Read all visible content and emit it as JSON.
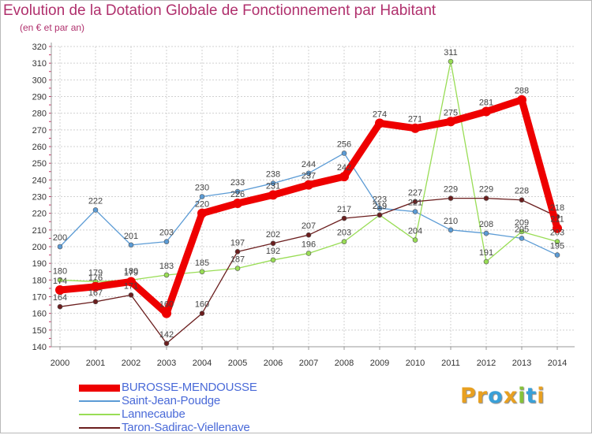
{
  "title": "Evolution de la Dotation Globale de Fonctionnement par Habitant",
  "subtitle": "(en € et par an)",
  "brand": {
    "letters": [
      "P",
      "r",
      "o",
      "x",
      "i",
      "t",
      "i"
    ],
    "colors": [
      "#e8a020",
      "#e8a020",
      "#39a0d8",
      "#e8a020",
      "#86c23a",
      "#39a0d8",
      "#e8a020"
    ]
  },
  "chart_data": {
    "type": "line",
    "title": "Evolution de la Dotation Globale de Fonctionnement par Habitant",
    "subtitle": "(en € et par an)",
    "xlabel": "",
    "ylabel": "",
    "x": [
      "2000",
      "2001",
      "2002",
      "2003",
      "2004",
      "2005",
      "2006",
      "2007",
      "2008",
      "2009",
      "2010",
      "2011",
      "2012",
      "2013",
      "2014"
    ],
    "ylim": [
      140,
      320
    ],
    "yticks": [
      "140",
      "150",
      "160",
      "170",
      "180",
      "190",
      "200",
      "210",
      "220",
      "230",
      "240",
      "250",
      "260",
      "270",
      "280",
      "290",
      "300",
      "310",
      "320"
    ],
    "grid": true,
    "legend_position": "bottom-left",
    "series": [
      {
        "name": "BUROSSE-MENDOUSSE",
        "color": "#ee0000",
        "values": [
          174,
          176,
          179,
          160,
          220,
          226,
          231,
          237,
          242,
          274,
          271,
          275,
          281,
          288,
          211
        ],
        "labels": [
          "174",
          "176",
          "179",
          "160",
          "220",
          "226",
          "231",
          "237",
          "242",
          "274",
          "271",
          "275",
          "281",
          "288",
          "211"
        ]
      },
      {
        "name": "Saint-Jean-Poudge",
        "color": "#5b9bd5",
        "values": [
          200,
          222,
          201,
          203,
          230,
          233,
          238,
          244,
          256,
          223,
          221,
          210,
          208,
          205,
          195
        ],
        "labels": [
          "200",
          "222",
          "201",
          "203",
          "230",
          "233",
          "238",
          "244",
          "256",
          "223",
          "221",
          "210",
          "208",
          "205",
          "195"
        ]
      },
      {
        "name": "Lannecaube",
        "color": "#99dd55",
        "values": [
          180,
          179,
          180,
          183,
          185,
          187,
          192,
          196,
          203,
          219,
          204,
          311,
          191,
          209,
          203
        ],
        "labels": [
          "180",
          "179",
          "180",
          "183",
          "185",
          "187",
          "192",
          "196",
          "203",
          "219",
          "204",
          "311",
          "191",
          "209",
          "203"
        ]
      },
      {
        "name": "Taron-Sadirac-Viellenave",
        "color": "#6b1e1e",
        "values": [
          164,
          167,
          171,
          142,
          160,
          197,
          202,
          207,
          217,
          219,
          227,
          229,
          229,
          228,
          218
        ],
        "labels": [
          "164",
          "167",
          "171",
          "142",
          "160",
          "197",
          "202",
          "207",
          "217",
          "219",
          "227",
          "229",
          "229",
          "228",
          "218"
        ]
      }
    ]
  }
}
